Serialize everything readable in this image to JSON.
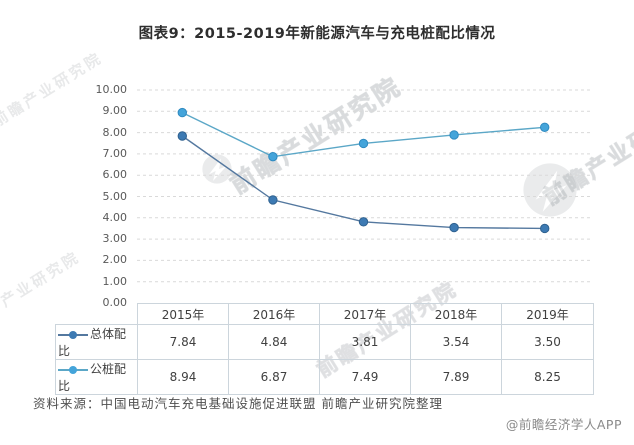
{
  "title": "图表9：2015-2019年新能源汽车与充电桩配比情况",
  "source_note": "资料来源：中国电动汽车充电基础设施促进联盟 前瞻产业研究院整理",
  "credit": "@前瞻经济学人APP",
  "watermark": {
    "text": "前瞻产业研究院",
    "short_text": "产业研究院"
  },
  "chart_data": {
    "type": "line",
    "title": "图表9：2015-2019年新能源汽车与充电桩配比情况",
    "categories": [
      "2015年",
      "2016年",
      "2017年",
      "2018年",
      "2019年"
    ],
    "series": [
      {
        "name": "总体配比",
        "values": [
          7.84,
          4.84,
          3.81,
          3.54,
          3.5
        ],
        "values_text": [
          "7.84",
          "4.84",
          "3.81",
          "3.54",
          "3.50"
        ],
        "line_color": "#54789f",
        "marker_color": "#3d7ab3",
        "marker_edge": "#2f618f"
      },
      {
        "name": "公桩配比",
        "values": [
          8.94,
          6.87,
          7.49,
          7.89,
          8.25
        ],
        "values_text": [
          "8.94",
          "6.87",
          "7.49",
          "7.89",
          "8.25"
        ],
        "line_color": "#5ba7c7",
        "marker_color": "#44a4da",
        "marker_edge": "#2f8ac0"
      }
    ],
    "xlabel": "",
    "ylabel": "",
    "ylim": [
      0,
      10
    ],
    "ytick_step": 1,
    "yticks": [
      "10.00",
      "9.00",
      "8.00",
      "7.00",
      "6.00",
      "5.00",
      "4.00",
      "3.00",
      "2.00",
      "1.00",
      "0.00"
    ],
    "grid": "horizontal-dashed",
    "legend_position": "data-table-left"
  }
}
